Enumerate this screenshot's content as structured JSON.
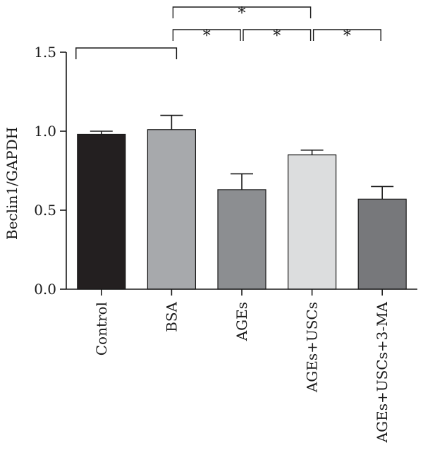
{
  "chart_data": {
    "type": "bar",
    "title": "",
    "xlabel": "",
    "ylabel": "Beclin1/GAPDH",
    "ylim": [
      0,
      1.5
    ],
    "yticks": [
      "0.0",
      "0.5",
      "1.0",
      "1.5"
    ],
    "ytick_values": [
      0,
      0.5,
      1.0,
      1.5
    ],
    "grid": false,
    "categories": [
      "Control",
      "BSA",
      "AGEs",
      "AGEs+USCs",
      "AGEs+USCs+3-MA"
    ],
    "values": [
      0.98,
      1.01,
      0.63,
      0.85,
      0.57
    ],
    "errors": [
      0.02,
      0.09,
      0.1,
      0.03,
      0.08
    ],
    "colors": [
      "#231f20",
      "#a7a9ac",
      "#8c8e91",
      "#dcddde",
      "#77787b"
    ],
    "significance": [
      {
        "from": 0,
        "to": 1,
        "label": ""
      },
      {
        "from": 1,
        "to": 2,
        "label": "*"
      },
      {
        "from": 2,
        "to": 3,
        "label": "*"
      },
      {
        "from": 3,
        "to": 4,
        "label": "*"
      },
      {
        "from": 1,
        "to": 3,
        "label": "*"
      }
    ]
  }
}
